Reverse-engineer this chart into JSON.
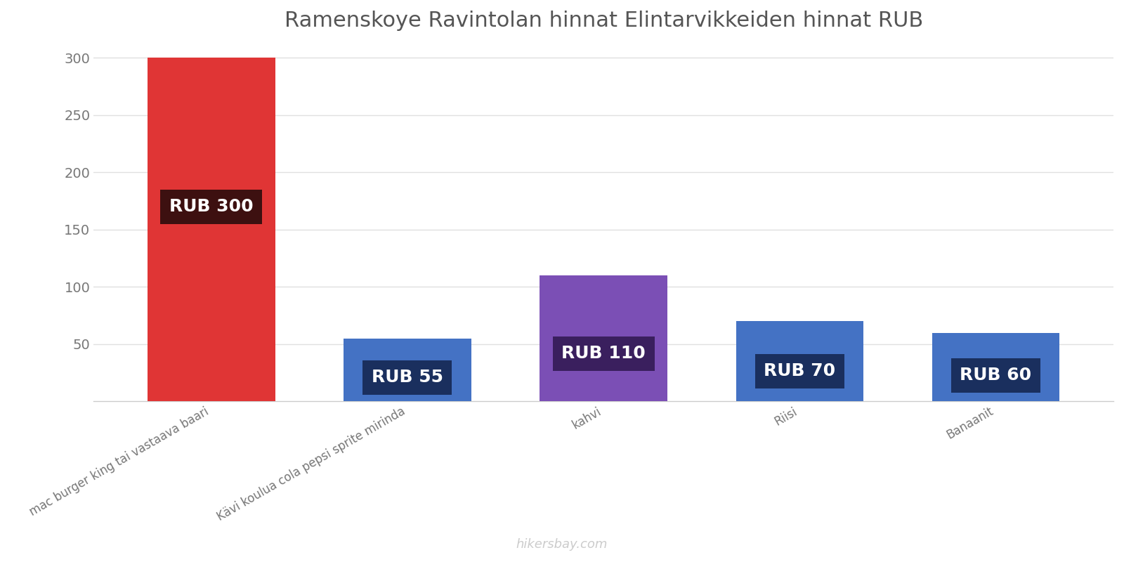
{
  "title": "Ramenskoye Ravintolan hinnat Elintarvikkeiden hinnat RUB",
  "categories": [
    "mac burger king tai vastaava baari",
    "Kävi koulua cola pepsi sprite mirinda",
    "kahvi",
    "Riisi",
    "Banaanit"
  ],
  "values": [
    300,
    55,
    110,
    70,
    60
  ],
  "bar_colors": [
    "#e03535",
    "#4472c4",
    "#7b4fb5",
    "#4472c4",
    "#4472c4"
  ],
  "label_texts": [
    "RUB 300",
    "RUB 55",
    "RUB 110",
    "RUB 70",
    "RUB 60"
  ],
  "label_bg_colors": [
    "#3d1010",
    "#1a2f5e",
    "#3a1f5e",
    "#1a2f5e",
    "#1a2f5e"
  ],
  "label_text_color": "#ffffff",
  "ylim": [
    0,
    310
  ],
  "yticks": [
    50,
    100,
    150,
    200,
    250,
    300
  ],
  "background_color": "#ffffff",
  "grid_color": "#e0e0e0",
  "title_fontsize": 22,
  "tick_fontsize": 14,
  "label_fontsize": 18,
  "watermark": "hikersbay.com",
  "watermark_color": "#cccccc",
  "bar_width": 0.65
}
